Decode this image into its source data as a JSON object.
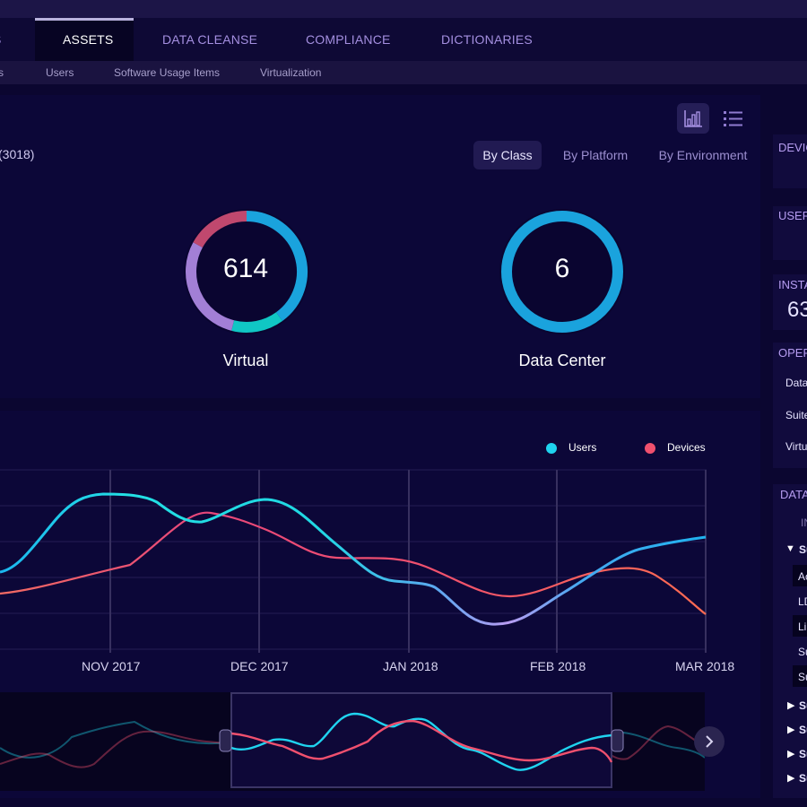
{
  "nav": {
    "tabs": [
      {
        "label": "S"
      },
      {
        "label": "ASSETS"
      },
      {
        "label": "DATA CLEANSE"
      },
      {
        "label": "COMPLIANCE"
      },
      {
        "label": "DICTIONARIES"
      }
    ],
    "active_index": 1
  },
  "subnav": {
    "items": [
      {
        "label": "s"
      },
      {
        "label": "Users"
      },
      {
        "label": "Software Usage Items"
      },
      {
        "label": "Virtualization"
      }
    ]
  },
  "summary": {
    "count_label": "(3018)",
    "view_toggle": {
      "chart_icon": "bar-chart-icon",
      "list_icon": "list-icon",
      "active": "chart"
    },
    "segments": [
      {
        "label": "By Class",
        "active": true
      },
      {
        "label": "By Platform",
        "active": false
      },
      {
        "label": "By Environment",
        "active": false
      }
    ],
    "donuts": [
      {
        "value": "614",
        "label": "Virtual",
        "slices": [
          {
            "fraction": 0.4,
            "color": "#1aa3dd"
          },
          {
            "fraction": 0.14,
            "color": "#10c7c4"
          },
          {
            "fraction": 0.29,
            "color": "#a27fd6"
          },
          {
            "fraction": 0.17,
            "color": "#c0486e"
          }
        ]
      },
      {
        "value": "6",
        "label": "Data Center",
        "slices": [
          {
            "fraction": 1.0,
            "color": "#1aa3dd"
          }
        ]
      }
    ]
  },
  "trend": {
    "legend": [
      {
        "label": "Users",
        "color": "#1fd3ef"
      },
      {
        "label": "Devices",
        "color": "#f0506e"
      }
    ]
  },
  "chart_data": {
    "type": "line",
    "x": [
      "NOV 2017",
      "DEC 2017",
      "JAN 2018",
      "FEB 2018",
      "MAR 2018"
    ],
    "series": [
      {
        "name": "Users",
        "color": "#1fd3ef"
      },
      {
        "name": "Devices",
        "color": "#f0506e"
      }
    ],
    "grid": true,
    "legend_position": "top-right",
    "navigator": true
  },
  "sidebar": {
    "sections": [
      {
        "title": "DEVIC"
      },
      {
        "title": "USER"
      },
      {
        "title": "INSTA",
        "value": "63"
      },
      {
        "title": "OPER",
        "items": [
          "Data",
          "Suite",
          "Virtu"
        ]
      },
      {
        "title": "DATA",
        "header": "IN",
        "tree": [
          "Su",
          "Ac",
          "LD",
          "Li",
          "Su",
          "Su",
          "Su",
          "Su",
          "Su",
          "Su"
        ]
      }
    ]
  }
}
